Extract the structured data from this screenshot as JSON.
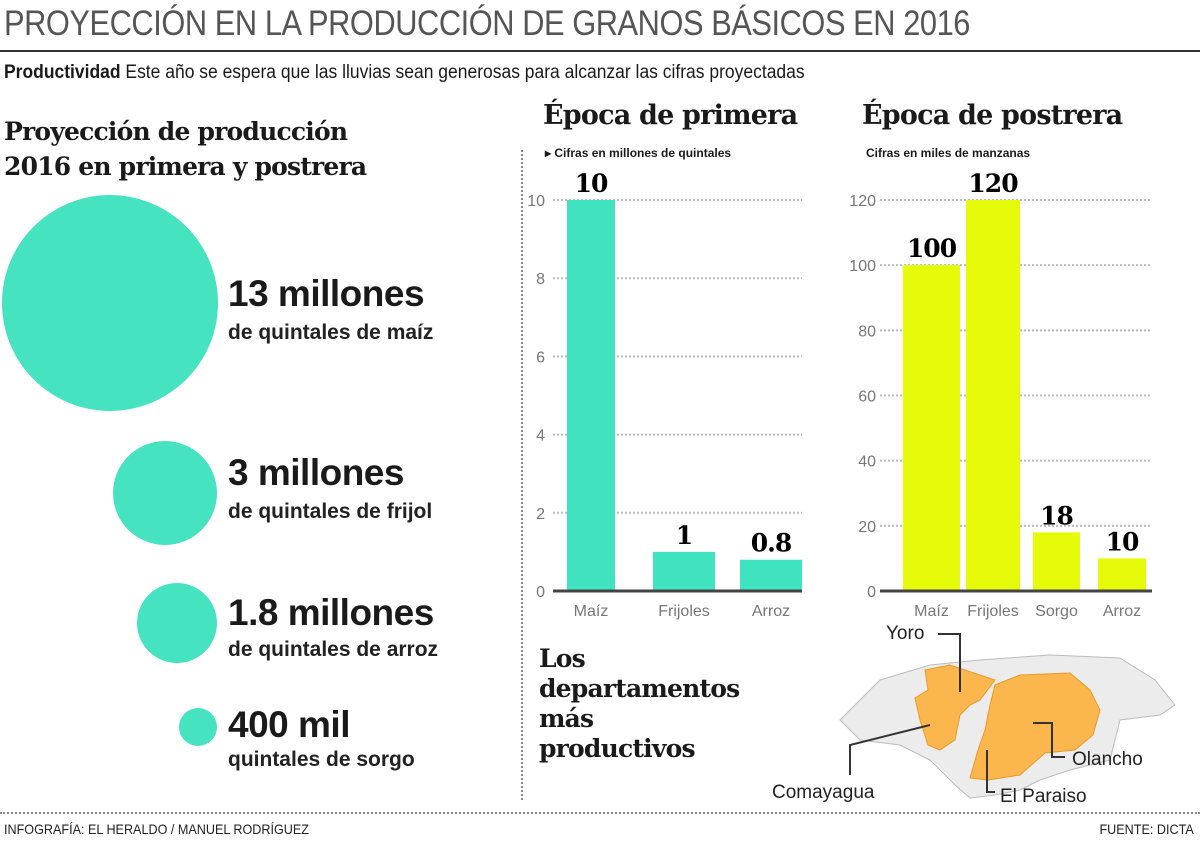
{
  "header": {
    "title": "PROYECCIÓN EN LA PRODUCCIÓN DE GRANOS BÁSICOS EN 2016",
    "subtitle_bold": "Productividad",
    "subtitle": "Este año se espera que las lluvias sean generosas para alcanzar las cifras proyectadas"
  },
  "left": {
    "heading_line1": "Proyección de producción",
    "heading_line2": "2016 en primera y postrera",
    "items": [
      {
        "big": "13 millones",
        "sub": "de quintales de maíz"
      },
      {
        "big": "3 millones",
        "sub": "de quintales de frijol"
      },
      {
        "big": "1.8 millones",
        "sub": "de quintales de arroz"
      },
      {
        "big": "400 mil",
        "sub": "quintales de sorgo"
      }
    ],
    "circle_color": "#45e3c0"
  },
  "chart_data": [
    {
      "type": "bar",
      "title": "Época de primera",
      "subtitle": "Cifras en millones de quintales",
      "categories": [
        "Maíz",
        "Frijoles",
        "Arroz"
      ],
      "values": [
        10,
        1,
        0.8
      ],
      "data_labels": [
        "10",
        "1",
        "0.8"
      ],
      "ylim": [
        0,
        10
      ],
      "yticks": [
        0,
        2,
        4,
        6,
        8,
        10
      ],
      "grid": true,
      "color": "#40e3c0"
    },
    {
      "type": "bar",
      "title": "Época de postrera",
      "subtitle": "Cifras en miles de manzanas",
      "categories": [
        "Maíz",
        "Frijoles",
        "Sorgo",
        "Arroz"
      ],
      "values": [
        100,
        120,
        18,
        10
      ],
      "data_labels": [
        "100",
        "120",
        "18",
        "10"
      ],
      "ylim": [
        0,
        120
      ],
      "yticks": [
        0,
        20,
        40,
        60,
        80,
        100,
        120
      ],
      "grid": true,
      "color": "#e6fb0a"
    }
  ],
  "map": {
    "heading": [
      "Los",
      "departamentos",
      "más",
      "productivos"
    ],
    "labels": [
      "Yoro",
      "Comayagua",
      "El Paraiso",
      "Olancho"
    ],
    "highlight_color": "#fbb74d",
    "base_color": "#ececec"
  },
  "footer": {
    "credit": "INFOGRAFÍA: EL HERALDO / MANUEL RODRÍGUEZ",
    "source": "FUENTE: DICTA"
  }
}
